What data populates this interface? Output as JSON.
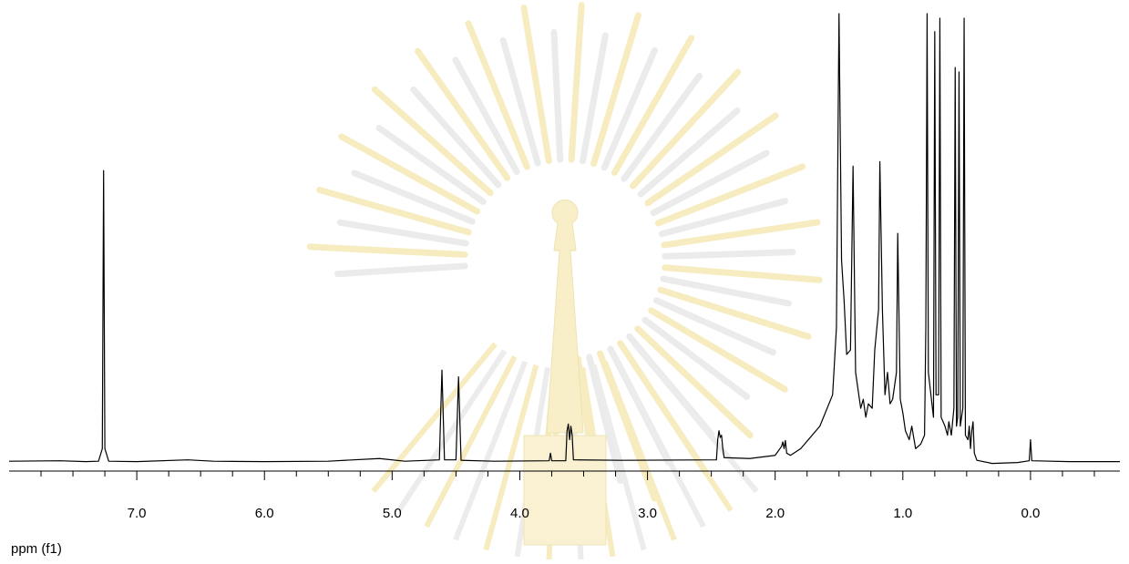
{
  "chart_data": {
    "type": "line",
    "xlabel": "ppm (f1)",
    "color": "#000000",
    "grid": false,
    "xlim": [
      8.0,
      -0.7
    ],
    "ylim": [
      -2,
      100
    ],
    "xticks": [
      {
        "value": 7,
        "label": "7.0"
      },
      {
        "value": 6,
        "label": "6.0"
      },
      {
        "value": 5,
        "label": "5.0"
      },
      {
        "value": 4,
        "label": "4.0"
      },
      {
        "value": 3,
        "label": "3.0"
      },
      {
        "value": 2,
        "label": "2.0"
      },
      {
        "value": 1,
        "label": "1.0"
      },
      {
        "value": 0,
        "label": "0.0"
      }
    ],
    "xminorticks": [
      7.75,
      7.5,
      7.25,
      6.75,
      6.5,
      6.25,
      5.75,
      5.5,
      5.25,
      4.75,
      4.5,
      4.25,
      3.75,
      3.5,
      3.25,
      2.75,
      2.5,
      2.25,
      1.75,
      1.5,
      1.25,
      0.75,
      0.5,
      0.25,
      -0.25,
      -0.5
    ],
    "x": [
      8.0,
      7.6,
      7.4,
      7.3,
      7.27,
      7.26,
      7.25,
      7.22,
      7.0,
      6.6,
      6.4,
      6.0,
      5.5,
      5.1,
      4.9,
      4.63,
      4.61,
      4.59,
      4.5,
      4.48,
      4.46,
      4.2,
      3.77,
      3.76,
      3.75,
      3.64,
      3.63,
      3.62,
      3.61,
      3.6,
      3.59,
      3.58,
      3.2,
      2.46,
      2.45,
      2.44,
      2.43,
      2.42,
      2.41,
      2.4,
      2.2,
      2.0,
      1.95,
      1.94,
      1.93,
      1.92,
      1.91,
      1.88,
      1.8,
      1.65,
      1.55,
      1.52,
      1.5,
      1.48,
      1.46,
      1.44,
      1.41,
      1.39,
      1.37,
      1.33,
      1.31,
      1.29,
      1.27,
      1.24,
      1.22,
      1.19,
      1.18,
      1.16,
      1.14,
      1.12,
      1.1,
      1.08,
      1.05,
      1.04,
      1.02,
      1.0,
      0.98,
      0.95,
      0.93,
      0.9,
      0.86,
      0.83,
      0.82,
      0.81,
      0.8,
      0.76,
      0.75,
      0.74,
      0.72,
      0.71,
      0.7,
      0.67,
      0.65,
      0.64,
      0.62,
      0.6,
      0.59,
      0.58,
      0.57,
      0.56,
      0.55,
      0.53,
      0.52,
      0.51,
      0.49,
      0.48,
      0.47,
      0.46,
      0.45,
      0.44,
      0.42,
      0.3,
      0.1,
      0.01,
      0.0,
      -0.01,
      -0.3,
      -0.7
    ],
    "series": [
      {
        "values": [
          0.2,
          0.3,
          0.1,
          0.2,
          3,
          65,
          3,
          0.2,
          0.1,
          0.5,
          0.2,
          0.1,
          0.2,
          0.8,
          0.2,
          0.5,
          20.5,
          0.5,
          0.5,
          19,
          0.4,
          0.2,
          0.3,
          2,
          0.3,
          0.3,
          7,
          8.5,
          5,
          8,
          6,
          0.5,
          0.4,
          0.5,
          5,
          7,
          5.5,
          6,
          3,
          1,
          0.8,
          1.5,
          3.5,
          4.5,
          3,
          4.8,
          2,
          1.5,
          3,
          8,
          15,
          30,
          100,
          45,
          36,
          24,
          25,
          66,
          20,
          12,
          14,
          10,
          13,
          12,
          25,
          34,
          67,
          34,
          15,
          20,
          13,
          14,
          20,
          51,
          14,
          11,
          7,
          5,
          8,
          3,
          4,
          6,
          30,
          100,
          20,
          10,
          96,
          15,
          15,
          99,
          10,
          8,
          6,
          9,
          6,
          12,
          88,
          8,
          10,
          87,
          8,
          12,
          99,
          6,
          5,
          8,
          3,
          7,
          9,
          2,
          0.4,
          -0.3,
          -0.1,
          0.3,
          5,
          0.3,
          0.1,
          0.1
        ]
      }
    ]
  }
}
